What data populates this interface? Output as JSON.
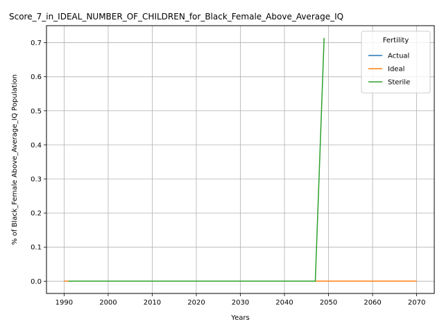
{
  "chart_data": {
    "type": "line",
    "title": "Score_7_in_IDEAL_NUMBER_OF_CHILDREN_for_Black_Female_Above_Average_IQ",
    "xlabel": "Years",
    "ylabel": "% of Black_Female Above_Average_IQ Population",
    "xlim": [
      1986,
      2074
    ],
    "ylim": [
      -0.036,
      0.75
    ],
    "x_ticks": [
      1990,
      2000,
      2010,
      2020,
      2030,
      2040,
      2050,
      2060,
      2070
    ],
    "y_ticks": [
      0.0,
      0.1,
      0.2,
      0.3,
      0.4,
      0.5,
      0.6,
      0.7
    ],
    "grid": true,
    "legend": {
      "title": "Fertility",
      "placement": "top-right"
    },
    "series": [
      {
        "name": "Actual",
        "color": "#1f77b4",
        "x": [
          1991,
          2047
        ],
        "y": [
          0.0,
          0.0
        ]
      },
      {
        "name": "Ideal",
        "color": "#ff7f0e",
        "x": [
          1990,
          2070
        ],
        "y": [
          0.0,
          0.0
        ]
      },
      {
        "name": "Sterile",
        "color": "#2ca02c",
        "x": [
          1991,
          2047,
          2049
        ],
        "y": [
          0.0,
          0.0,
          0.714
        ]
      }
    ]
  }
}
